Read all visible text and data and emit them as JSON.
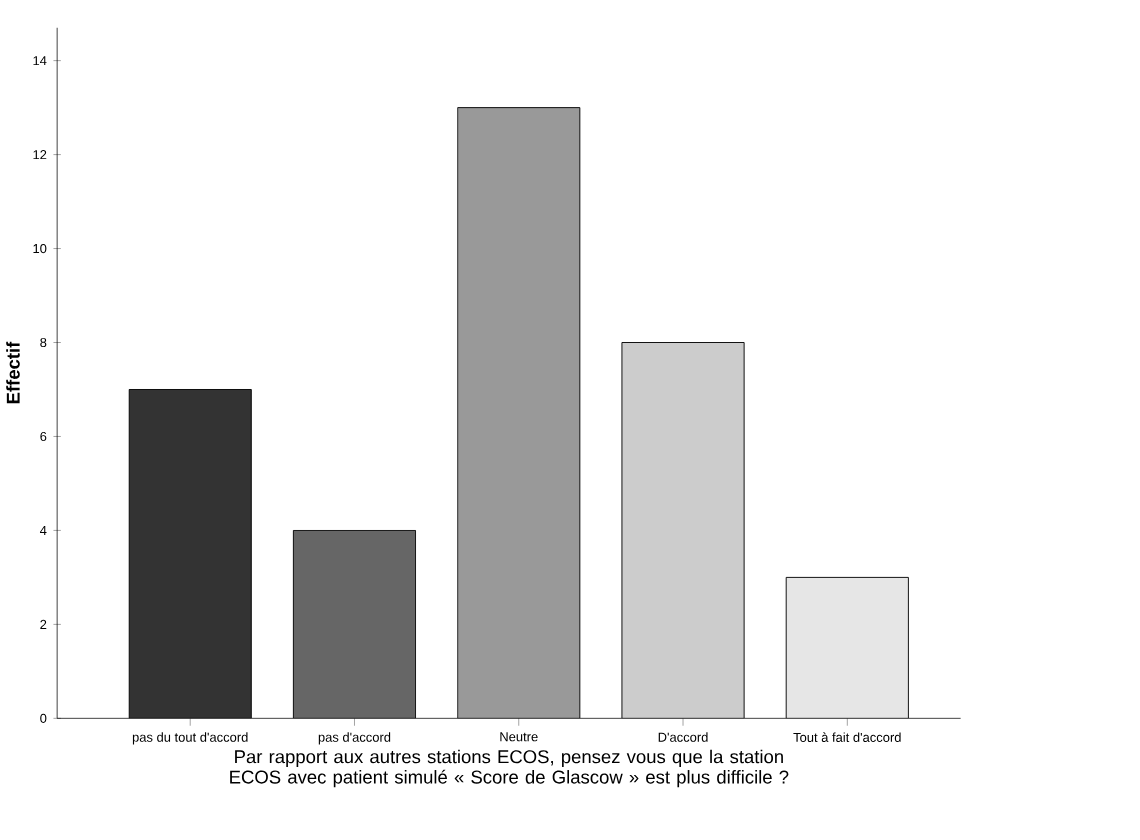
{
  "chart_data": {
    "type": "bar",
    "categories": [
      "pas du tout d'accord",
      "pas d'accord",
      "Neutre",
      "D'accord",
      "Tout à fait d'accord"
    ],
    "values": [
      7,
      4,
      13,
      8,
      3
    ],
    "colors": [
      "#333333",
      "#666666",
      "#999999",
      "#cccccc",
      "#e6e6e6"
    ],
    "xlabel": "Par rapport aux autres stations ECOS, pensez vous que la station ECOS avec patient simulé « Score de Glascow » est plus difficile ?",
    "ylabel": "Effectif",
    "ylim": [
      0,
      14.7
    ],
    "yticks": [
      0,
      2,
      4,
      6,
      8,
      10,
      12,
      14
    ]
  }
}
